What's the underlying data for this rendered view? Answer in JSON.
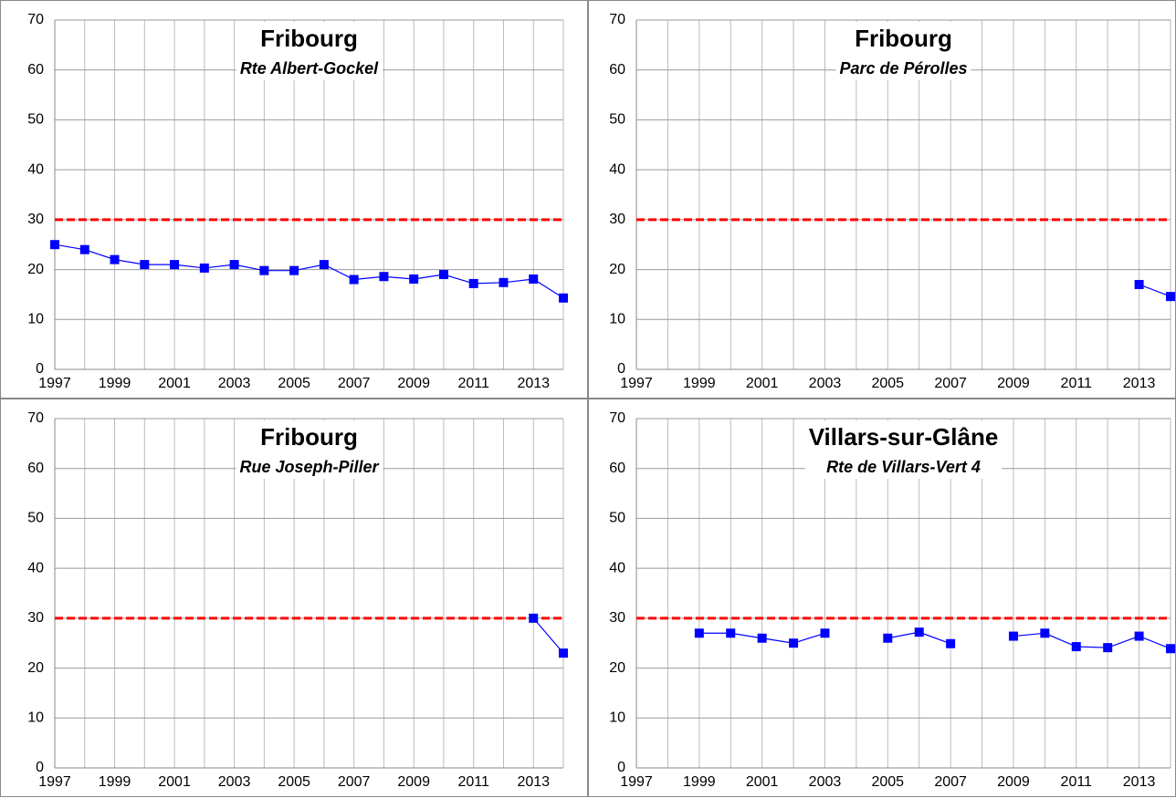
{
  "chart_data": [
    {
      "type": "line",
      "title": "Fribourg",
      "subtitle": "Rte Albert-Gockel",
      "categories": [
        "1997",
        null,
        "1999",
        null,
        "2001",
        null,
        "2003",
        null,
        "2005",
        null,
        "2007",
        null,
        "2009",
        null,
        "2011",
        null,
        "2013",
        null
      ],
      "series": [
        {
          "color": "#0000ff",
          "values": [
            25,
            24,
            22,
            21,
            21,
            20.3,
            21,
            19.8,
            19.8,
            21,
            18,
            18.6,
            18.1,
            19,
            17.2,
            17.4,
            18.1,
            14.3
          ]
        }
      ],
      "reference_line": {
        "value": 30,
        "color": "#ff0000"
      },
      "ylim": [
        0,
        70
      ],
      "yticks": [
        0,
        10,
        20,
        30,
        40,
        50,
        60,
        70
      ],
      "grid": true
    },
    {
      "type": "line",
      "title": "Fribourg",
      "subtitle": "Parc de Pérolles",
      "categories": [
        "1997",
        null,
        "1999",
        null,
        "2001",
        null,
        "2003",
        null,
        "2005",
        null,
        "2007",
        null,
        "2009",
        null,
        "2011",
        null,
        "2013",
        null
      ],
      "series": [
        {
          "color": "#0000ff",
          "values": [
            null,
            null,
            null,
            null,
            null,
            null,
            null,
            null,
            null,
            null,
            null,
            null,
            null,
            null,
            null,
            null,
            17,
            14.6
          ]
        }
      ],
      "reference_line": {
        "value": 30,
        "color": "#ff0000"
      },
      "ylim": [
        0,
        70
      ],
      "yticks": [
        0,
        10,
        20,
        30,
        40,
        50,
        60,
        70
      ],
      "grid": true
    },
    {
      "type": "line",
      "title": "Fribourg",
      "subtitle": "Rue Joseph-Piller",
      "categories": [
        "1997",
        null,
        "1999",
        null,
        "2001",
        null,
        "2003",
        null,
        "2005",
        null,
        "2007",
        null,
        "2009",
        null,
        "2011",
        null,
        "2013",
        null
      ],
      "series": [
        {
          "color": "#0000ff",
          "values": [
            null,
            null,
            null,
            null,
            null,
            null,
            null,
            null,
            null,
            null,
            null,
            null,
            null,
            null,
            null,
            null,
            30,
            23
          ]
        }
      ],
      "reference_line": {
        "value": 30,
        "color": "#ff0000"
      },
      "ylim": [
        0,
        70
      ],
      "yticks": [
        0,
        10,
        20,
        30,
        40,
        50,
        60,
        70
      ],
      "grid": true
    },
    {
      "type": "line",
      "title": "Villars-sur-Glâne",
      "subtitle": "Rte de Villars-Vert 4",
      "categories": [
        "1997",
        null,
        "1999",
        null,
        "2001",
        null,
        "2003",
        null,
        "2005",
        null,
        "2007",
        null,
        "2009",
        null,
        "2011",
        null,
        "2013",
        null
      ],
      "series": [
        {
          "color": "#0000ff",
          "values": [
            null,
            null,
            27,
            27,
            26,
            25,
            27,
            null,
            26,
            27.2,
            24.9,
            null,
            26.4,
            27,
            24.3,
            24.1,
            26.4,
            23.9
          ]
        }
      ],
      "reference_line": {
        "value": 30,
        "color": "#ff0000"
      },
      "ylim": [
        0,
        70
      ],
      "yticks": [
        0,
        10,
        20,
        30,
        40,
        50,
        60,
        70
      ],
      "grid": true
    }
  ]
}
